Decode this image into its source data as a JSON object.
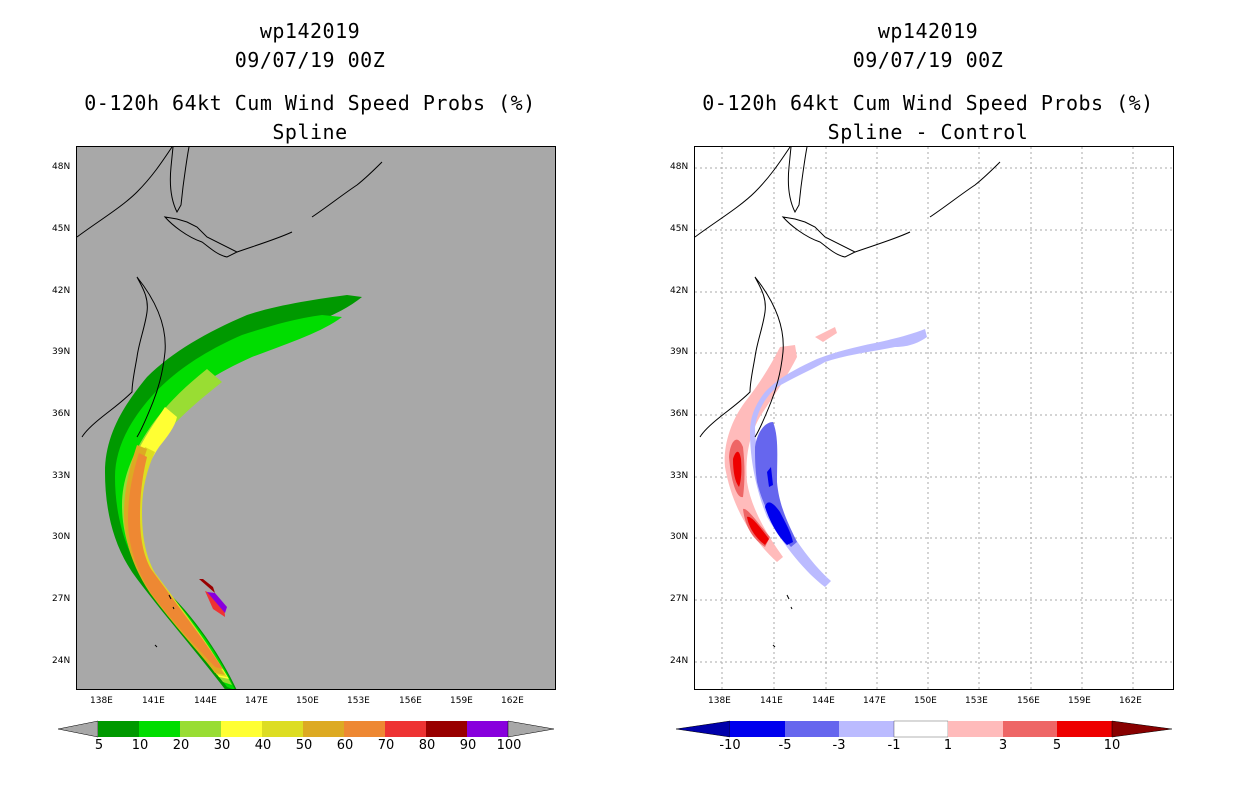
{
  "left_panel": {
    "title_line1": "wp142019",
    "title_line2": "09/07/19 00Z",
    "title_line3": "0-120h 64kt Cum Wind Speed Probs (%)",
    "title_line4": "Spline",
    "colorbar_labels": [
      "5",
      "10",
      "20",
      "30",
      "40",
      "50",
      "60",
      "70",
      "80",
      "90",
      "100"
    ],
    "colorbar_colors": [
      "#009900",
      "#00dd00",
      "#99dd33",
      "#ffff33",
      "#dddd22",
      "#ddaa22",
      "#ee8833",
      "#ee3333",
      "#990000",
      "#770077",
      "#8800dd"
    ]
  },
  "right_panel": {
    "title_line1": "wp142019",
    "title_line2": "09/07/19 00Z",
    "title_line3": "0-120h 64kt Cum Wind Speed Probs (%)",
    "title_line4": "Spline - Control",
    "colorbar_labels": [
      "-10",
      "-5",
      "-3",
      "-1",
      "1",
      "3",
      "5",
      "10"
    ],
    "colorbar_colors": [
      "#0000aa",
      "#0000ee",
      "#6666ee",
      "#bbbbff",
      "#ffffff",
      "#ffbbbb",
      "#ee6666",
      "#ee0000",
      "#880000"
    ]
  },
  "axes": {
    "lat_labels": [
      "48N",
      "45N",
      "42N",
      "39N",
      "36N",
      "33N",
      "30N",
      "27N",
      "24N"
    ],
    "lon_labels": [
      "138E",
      "141E",
      "144E",
      "147E",
      "150E",
      "153E",
      "156E",
      "159E",
      "162E"
    ]
  },
  "colors": {
    "land_background": "#a8a8a8",
    "coast": "#000000"
  }
}
